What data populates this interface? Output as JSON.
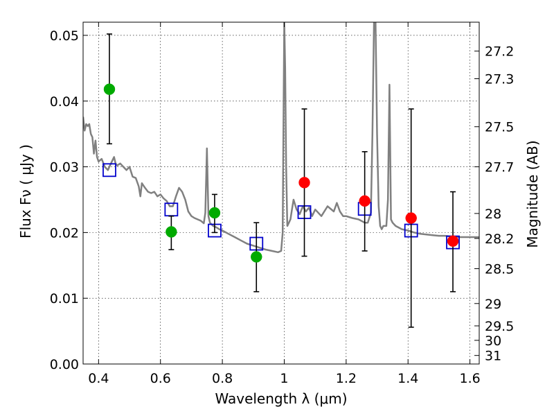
{
  "chart_data": {
    "type": "scatter",
    "xlabel": "Wavelength  λ (μm)",
    "ylabel": "Flux  Fν  ( μJy )",
    "ylabel_right": "Magnitude (AB)",
    "xlim": [
      0.35,
      1.63
    ],
    "ylim": [
      0.0,
      0.052
    ],
    "grid": true,
    "x_ticks": [
      0.4,
      0.6,
      0.8,
      1.0,
      1.2,
      1.4,
      1.6
    ],
    "x_tick_labels": [
      "0.4",
      "0.6",
      "0.8",
      "1",
      "1.2",
      "1.4",
      "1.6"
    ],
    "y_ticks": [
      0.0,
      0.01,
      0.02,
      0.03,
      0.04,
      0.05
    ],
    "y_tick_labels": [
      "0.00",
      "0.01",
      "0.02",
      "0.03",
      "0.04",
      "0.05"
    ],
    "right_ticks": [
      {
        "flux": 0.0476,
        "label": "27.2"
      },
      {
        "flux": 0.0434,
        "label": "27.3"
      },
      {
        "flux": 0.0361,
        "label": "27.5"
      },
      {
        "flux": 0.03,
        "label": "27.7"
      },
      {
        "flux": 0.0229,
        "label": "28"
      },
      {
        "flux": 0.0191,
        "label": "28.2"
      },
      {
        "flux": 0.0145,
        "label": "28.5"
      },
      {
        "flux": 0.0092,
        "label": "29"
      },
      {
        "flux": 0.0058,
        "label": "29.5"
      },
      {
        "flux": 0.0036,
        "label": "30"
      },
      {
        "flux": 0.0013,
        "label": "31"
      }
    ],
    "series": [
      {
        "type": "line",
        "color": "#808080",
        "x": [
          0.35,
          0.355,
          0.36,
          0.365,
          0.37,
          0.375,
          0.38,
          0.385,
          0.39,
          0.395,
          0.4,
          0.41,
          0.42,
          0.43,
          0.44,
          0.45,
          0.455,
          0.46,
          0.47,
          0.48,
          0.49,
          0.5,
          0.51,
          0.52,
          0.53,
          0.535,
          0.54,
          0.55,
          0.56,
          0.57,
          0.58,
          0.59,
          0.6,
          0.61,
          0.62,
          0.63,
          0.64,
          0.65,
          0.66,
          0.67,
          0.68,
          0.69,
          0.7,
          0.71,
          0.72,
          0.73,
          0.74,
          0.745,
          0.75,
          0.755,
          0.76,
          0.77,
          0.78,
          0.79,
          0.8,
          0.82,
          0.84,
          0.86,
          0.88,
          0.9,
          0.92,
          0.94,
          0.96,
          0.98,
          0.99,
          0.995,
          0.998,
          1.0,
          1.003,
          1.006,
          1.01,
          1.015,
          1.02,
          1.025,
          1.03,
          1.04,
          1.05,
          1.06,
          1.07,
          1.08,
          1.09,
          1.1,
          1.12,
          1.14,
          1.16,
          1.17,
          1.18,
          1.19,
          1.2,
          1.22,
          1.24,
          1.26,
          1.27,
          1.28,
          1.285,
          1.29,
          1.295,
          1.3,
          1.305,
          1.31,
          1.315,
          1.32,
          1.33,
          1.335,
          1.34,
          1.345,
          1.35,
          1.36,
          1.38,
          1.4,
          1.42,
          1.44,
          1.46,
          1.48,
          1.5,
          1.52,
          1.54,
          1.56,
          1.58,
          1.6,
          1.63
        ],
        "y": [
          0.0376,
          0.0355,
          0.0365,
          0.0362,
          0.0365,
          0.035,
          0.0345,
          0.032,
          0.034,
          0.0315,
          0.0308,
          0.0312,
          0.03,
          0.0295,
          0.0305,
          0.0315,
          0.0305,
          0.0302,
          0.0305,
          0.03,
          0.0295,
          0.03,
          0.0285,
          0.0283,
          0.027,
          0.0255,
          0.0275,
          0.0268,
          0.0262,
          0.026,
          0.0262,
          0.0255,
          0.0258,
          0.0252,
          0.0248,
          0.024,
          0.024,
          0.0255,
          0.0268,
          0.0262,
          0.025,
          0.0232,
          0.0225,
          0.0222,
          0.022,
          0.0218,
          0.0214,
          0.023,
          0.0328,
          0.0225,
          0.0215,
          0.021,
          0.0208,
          0.0205,
          0.0203,
          0.0198,
          0.0193,
          0.0188,
          0.0183,
          0.018,
          0.0177,
          0.0174,
          0.0172,
          0.017,
          0.0172,
          0.02,
          0.04,
          0.052,
          0.045,
          0.03,
          0.021,
          0.0215,
          0.022,
          0.0235,
          0.025,
          0.0235,
          0.0228,
          0.024,
          0.0232,
          0.0238,
          0.0225,
          0.0235,
          0.0225,
          0.024,
          0.0232,
          0.0245,
          0.0232,
          0.0225,
          0.0225,
          0.0222,
          0.022,
          0.0215,
          0.0215,
          0.023,
          0.035,
          0.052,
          0.052,
          0.035,
          0.024,
          0.021,
          0.0205,
          0.021,
          0.021,
          0.025,
          0.0425,
          0.022,
          0.0215,
          0.021,
          0.0205,
          0.0203,
          0.02,
          0.0198,
          0.0197,
          0.0196,
          0.0195,
          0.0195,
          0.0194,
          0.0193,
          0.0193,
          0.0193,
          0.0193
        ]
      },
      {
        "type": "scatter",
        "marker": "circle",
        "color": "#00aa00",
        "x": [
          0.435,
          0.635,
          0.775,
          0.91
        ],
        "y": [
          0.0418,
          0.0201,
          0.023,
          0.0163
        ]
      },
      {
        "type": "scatter",
        "marker": "circle",
        "color": "#ff0000",
        "x": [
          1.065,
          1.26,
          1.41,
          1.545
        ],
        "y": [
          0.0276,
          0.0248,
          0.0222,
          0.0187
        ]
      },
      {
        "type": "scatter",
        "marker": "open-square",
        "color": "#0000cc",
        "x": [
          0.435,
          0.635,
          0.775,
          0.91,
          1.065,
          1.26,
          1.41,
          1.545
        ],
        "y": [
          0.0295,
          0.0235,
          0.0203,
          0.0183,
          0.0231,
          0.0236,
          0.0203,
          0.0185
        ]
      },
      {
        "type": "errorbar",
        "color": "#000000",
        "x": [
          0.435,
          0.635,
          0.775,
          0.91,
          1.065,
          1.26,
          1.41,
          1.545
        ],
        "low": [
          0.0335,
          0.0174,
          0.02,
          0.011,
          0.0164,
          0.0172,
          0.0056,
          0.011
        ],
        "high": [
          0.0502,
          0.0225,
          0.0258,
          0.0215,
          0.0388,
          0.0323,
          0.0388,
          0.0262
        ]
      }
    ]
  }
}
